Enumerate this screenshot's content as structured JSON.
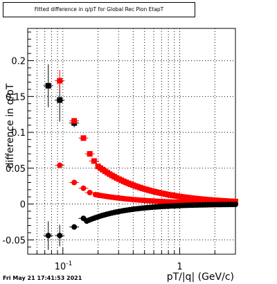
{
  "chart_data": {
    "type": "scatter",
    "title": "Fitted difference in q/pT for Global Rec Pion EtapT",
    "xlabel": "pT/|q| (GeV/c)",
    "ylabel": "difference in q/pT",
    "x_scale": "log",
    "xlim": [
      0.05,
      3.0
    ],
    "ylim": [
      -0.07,
      0.245
    ],
    "x_tick_labels": [
      "10^-1",
      "1"
    ],
    "y_tick_labels": [
      "-0.05",
      "0",
      "0.05",
      "0.1",
      "0.15",
      "0.2"
    ],
    "grid": true,
    "series": [
      {
        "marker": "square",
        "color": "#000000",
        "points": [
          {
            "x": 0.075,
            "y": 0.165,
            "err": 0.03
          },
          {
            "x": 0.094,
            "y": 0.145,
            "err": 0.03
          },
          {
            "x": 0.125,
            "y": 0.113,
            "err": 0.006
          }
        ]
      },
      {
        "marker": "square",
        "color": "#ff0000",
        "points": [
          {
            "x": 0.094,
            "y": 0.172,
            "err": 0.015
          },
          {
            "x": 0.125,
            "y": 0.116,
            "err": 0.004
          },
          {
            "x": 0.15,
            "y": 0.092
          },
          {
            "x": 0.17,
            "y": 0.07
          },
          {
            "x": 0.185,
            "y": 0.06
          }
        ],
        "curve": {
          "a": 0.0105,
          "p": 1.0,
          "x_from": 0.2,
          "x_to": 3.0,
          "n": 60
        }
      },
      {
        "marker": "circle",
        "color": "#ff0000",
        "points": [
          {
            "x": 0.094,
            "y": 0.054
          },
          {
            "x": 0.125,
            "y": 0.03
          },
          {
            "x": 0.15,
            "y": 0.022
          },
          {
            "x": 0.17,
            "y": 0.016
          }
        ],
        "curve": {
          "a": 0.0025,
          "p": 1.0,
          "x_from": 0.19,
          "x_to": 3.0,
          "n": 60
        }
      },
      {
        "marker": "circle",
        "color": "#000000",
        "points": [
          {
            "x": 0.075,
            "y": -0.044,
            "err": 0.02
          },
          {
            "x": 0.094,
            "y": -0.044,
            "err": 0.015
          },
          {
            "x": 0.125,
            "y": -0.032
          },
          {
            "x": 0.15,
            "y": -0.02
          }
        ],
        "curve": {
          "a": -0.0022,
          "p": 1.3,
          "x_from": 0.16,
          "x_to": 3.0,
          "n": 60
        }
      }
    ]
  },
  "timestamp": "Fri May 21 17:41:53 2021"
}
